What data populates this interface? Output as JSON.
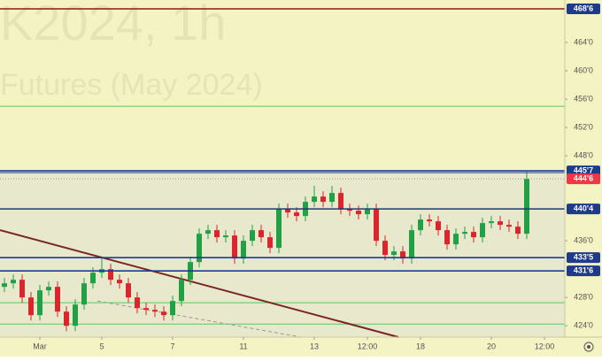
{
  "chart_data": {
    "type": "candlestick",
    "watermark": [
      "K2024, 1h",
      "Futures (May 2024)"
    ],
    "categories": [
      null,
      null,
      null,
      null,
      "Mar",
      null,
      null,
      null,
      null,
      null,
      null,
      "5",
      null,
      null,
      null,
      null,
      null,
      null,
      null,
      "7",
      null,
      null,
      null,
      null,
      null,
      null,
      null,
      "11",
      null,
      null,
      null,
      null,
      null,
      null,
      null,
      "13",
      null,
      null,
      null,
      null,
      null,
      "12:00",
      null,
      null,
      null,
      null,
      null,
      "18",
      null,
      null,
      null,
      null,
      null,
      null,
      null,
      "20",
      null,
      null,
      null,
      null,
      null,
      "12:00",
      null
    ],
    "open": [
      429.5,
      430,
      430.5,
      428,
      425.5,
      429,
      429.5,
      426,
      424,
      427,
      430,
      431.5,
      432,
      430.5,
      430,
      428,
      426.5,
      426.25,
      426,
      425.5,
      427.5,
      430.5,
      433,
      437,
      437.5,
      436.5,
      436.75,
      433.5,
      436,
      437.5,
      436.5,
      435,
      440.5,
      440,
      439.5,
      441.5,
      442.25,
      441.5,
      442.75,
      440.5,
      440.25,
      439.75,
      440.5,
      436,
      434,
      434.5,
      433.5,
      437.5,
      439,
      438.75,
      437.5,
      435.5,
      437,
      437.25,
      436.5,
      438.5,
      438.75,
      438.25,
      438,
      437,
      null,
      null,
      null
    ],
    "high": [
      430.75,
      431.25,
      431.25,
      428.75,
      429.75,
      430.25,
      430.25,
      426.75,
      427.75,
      430.75,
      432.25,
      433.5,
      432.75,
      431.25,
      430.75,
      428.75,
      427.25,
      427,
      426.75,
      428.25,
      431.25,
      433.75,
      437.75,
      438.25,
      438.25,
      437.5,
      437.5,
      436.75,
      438.25,
      438.25,
      437.25,
      441.25,
      441.25,
      440.75,
      442.25,
      443.75,
      443,
      443.75,
      443.5,
      441.25,
      441,
      441.25,
      441.25,
      436.75,
      435.25,
      435.25,
      438.25,
      439.75,
      439.75,
      439.5,
      438.25,
      437.75,
      438,
      438,
      439.25,
      439.5,
      439.5,
      439,
      438.75,
      445.75,
      null,
      null,
      null
    ],
    "low": [
      428.75,
      429.25,
      427.25,
      424.75,
      424.75,
      428.25,
      425.25,
      423.25,
      423.25,
      426.25,
      429.25,
      430.75,
      429.75,
      429.25,
      427.25,
      425.75,
      425.5,
      425.25,
      424.75,
      424.75,
      426.75,
      429.75,
      432.25,
      436.25,
      435.75,
      435.75,
      432.75,
      432.75,
      435.25,
      435.75,
      434.25,
      434.25,
      439.25,
      438.75,
      438.75,
      440.75,
      440.75,
      440.75,
      439.75,
      439.5,
      439,
      439,
      435.25,
      433.25,
      433.25,
      432.75,
      432.75,
      436.75,
      438,
      436.75,
      434.75,
      434.75,
      436.25,
      435.75,
      435.75,
      437.75,
      437.5,
      437.25,
      436.25,
      436.25,
      null,
      null,
      null
    ],
    "close": [
      430,
      430.5,
      428,
      425.5,
      429,
      429.5,
      426,
      424,
      427,
      430,
      431.5,
      432,
      430.5,
      430,
      428,
      426.5,
      426.25,
      426,
      425.5,
      427.5,
      430.5,
      433,
      437,
      437.5,
      436.5,
      436.75,
      433.5,
      436,
      437.5,
      436.5,
      435,
      440.5,
      440,
      439.5,
      441.5,
      442.25,
      441.5,
      442.75,
      440.5,
      440.25,
      439.75,
      440.5,
      436,
      434,
      434.5,
      433.5,
      437.5,
      439,
      438.75,
      437.5,
      435.5,
      437,
      437.25,
      436.5,
      438.5,
      438.75,
      438.25,
      438,
      437,
      444.75,
      null,
      null,
      null
    ],
    "up_color": "#22a046",
    "down_color": "#d8262c",
    "ylim": [
      422.4,
      470
    ],
    "yticks": [
      {
        "value": 424,
        "label": "424'0"
      },
      {
        "value": 428,
        "label": "428'0"
      },
      {
        "value": 436,
        "label": "436'0"
      },
      {
        "value": 448,
        "label": "448'0"
      },
      {
        "value": 452,
        "label": "452'0"
      },
      {
        "value": 456,
        "label": "456'0"
      },
      {
        "value": 460,
        "label": "460'0"
      },
      {
        "value": 464,
        "label": "464'0"
      }
    ],
    "levels": [
      {
        "value": 468.75,
        "label": "468'6",
        "color": "#8b1a1a",
        "label_color": "#1e3a8a"
      },
      {
        "value": 445.875,
        "label": "445'7",
        "color": "#1e3a9a",
        "label_color": "#1e3a8a"
      },
      {
        "value": 444.75,
        "label": "444'6",
        "color": "#9a9a9a",
        "label_color": "#f23645"
      },
      {
        "value": 440.5,
        "label": "440'4",
        "color": "#1e3a6a",
        "label_color": "#1e3a8a"
      },
      {
        "value": 433.625,
        "label": "433'5",
        "color": "#1e3a9a",
        "label_color": "#1e3a8a"
      },
      {
        "value": 431.75,
        "label": "431'6",
        "color": "#1e3a9a",
        "label_color": "#1e3a8a"
      }
    ],
    "guide_lines": [
      455,
      427.25,
      424.25
    ],
    "guide_color": "#5cc85c",
    "trend_lines": [
      {
        "from": [
          -0.5,
          437.5
        ],
        "to": [
          44.5,
          422.4
        ],
        "color": "#7a2525"
      },
      {
        "from": [
          10.5,
          427.5
        ],
        "to": [
          33.5,
          422.4
        ],
        "color": "#999999"
      }
    ]
  }
}
